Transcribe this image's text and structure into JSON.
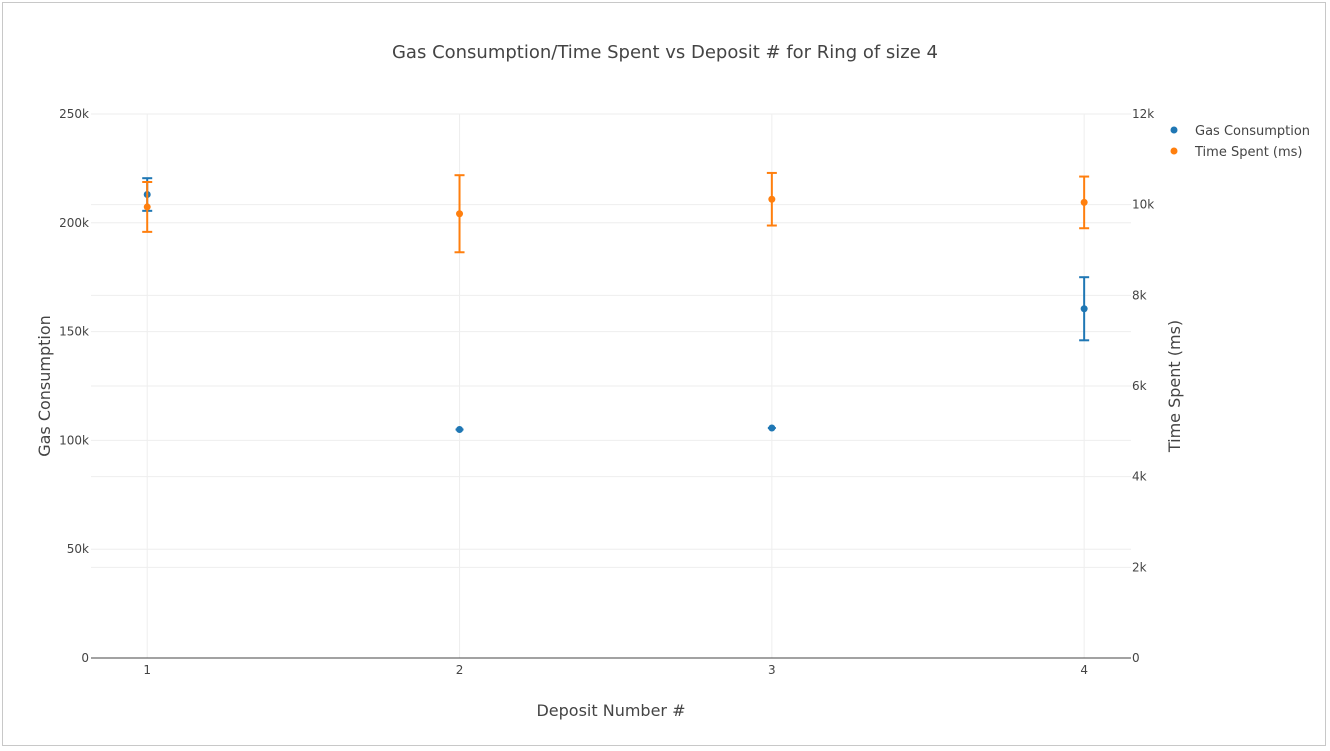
{
  "chart_data": {
    "type": "scatter",
    "title": "Gas Consumption/Time Spent vs Deposit # for Ring of size 4",
    "xlabel": "Deposit Number #",
    "ylabel": "Gas Consumption",
    "y2label": "Time Spent (ms)",
    "x": [
      1,
      2,
      3,
      4
    ],
    "xlim": [
      0.82,
      4.15
    ],
    "ylim": [
      0,
      250000
    ],
    "y2lim": [
      0,
      12000
    ],
    "x_ticks": [
      1,
      2,
      3,
      4
    ],
    "y_ticks": [
      0,
      50000,
      100000,
      150000,
      200000,
      250000
    ],
    "y_tick_labels": [
      "0",
      "50k",
      "100k",
      "150k",
      "200k",
      "250k"
    ],
    "y2_ticks": [
      0,
      2000,
      4000,
      6000,
      8000,
      10000,
      12000
    ],
    "y2_tick_labels": [
      "0",
      "2k",
      "4k",
      "6k",
      "8k",
      "10k",
      "12k"
    ],
    "grid": true,
    "legend_position": "top-right",
    "series": [
      {
        "name": "Gas Consumption",
        "axis": "y",
        "color": "#1f77b4",
        "values": [
          213000,
          105000,
          105700,
          160500
        ],
        "error": [
          7500,
          0,
          0,
          14500
        ]
      },
      {
        "name": "Time Spent (ms)",
        "axis": "y2",
        "color": "#ff7f0e",
        "values": [
          9950,
          9800,
          10120,
          10050
        ],
        "error": [
          550,
          850,
          580,
          570
        ]
      }
    ]
  }
}
